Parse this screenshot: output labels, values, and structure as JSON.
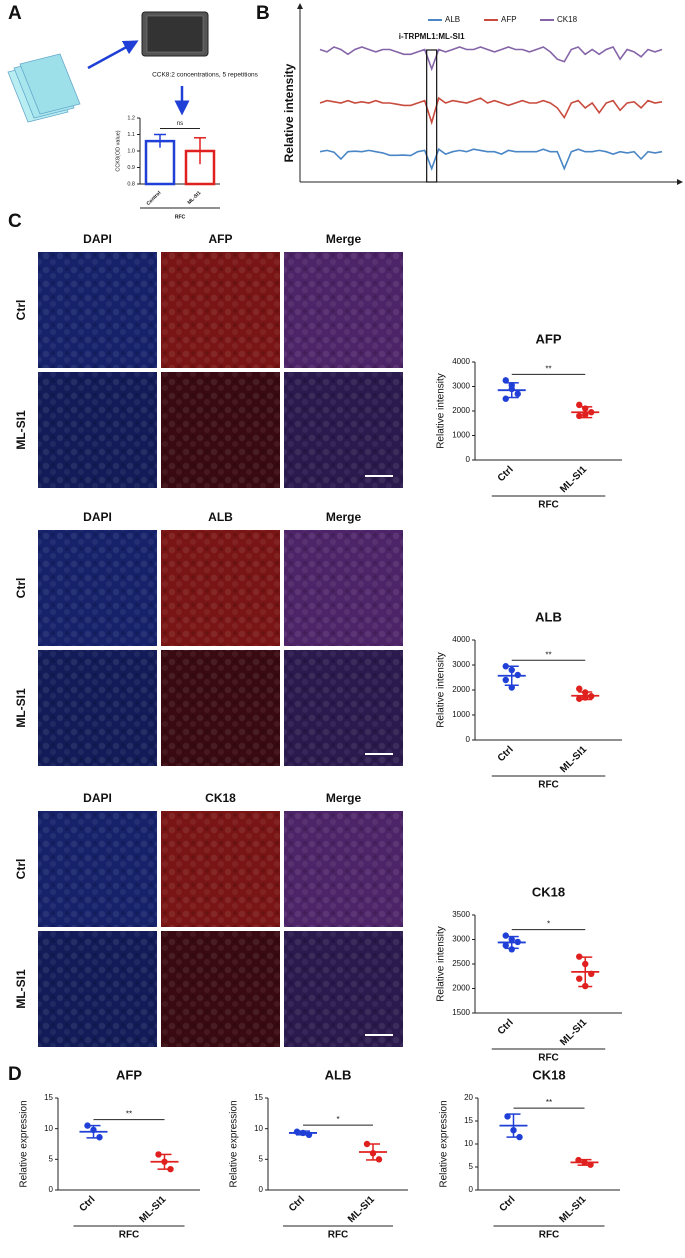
{
  "panels": [
    "A",
    "B",
    "C",
    "D"
  ],
  "panel_a": {
    "caption": "CCK8:2 concentrations, 5 repetitions"
  },
  "panel_c": {
    "blocks": [
      {
        "columns": [
          "DAPI",
          "AFP",
          "Merge"
        ],
        "rows": [
          "Ctrl",
          "ML-SI1"
        ]
      },
      {
        "columns": [
          "DAPI",
          "ALB",
          "Merge"
        ],
        "rows": [
          "Ctrl",
          "ML-SI1"
        ]
      },
      {
        "columns": [
          "DAPI",
          "CK18",
          "Merge"
        ],
        "rows": [
          "Ctrl",
          "ML-SI1"
        ]
      }
    ]
  },
  "chart_data": [
    {
      "type": "bar",
      "ylabel": "CCK8(OD value)",
      "categories": [
        "Control",
        "ML-SI1"
      ],
      "values": [
        1.06,
        1.0
      ],
      "errors": [
        0.04,
        0.08
      ],
      "colors": [
        "#1f3fd6",
        "#e0201e"
      ],
      "ylim": [
        0.8,
        1.2
      ],
      "yticks": [
        0.8,
        0.9,
        {
          "value": 1.0,
          "label": "1.0"
        },
        1.1,
        1.2
      ],
      "significance": "ns",
      "group": "RFC"
    },
    {
      "type": "line",
      "ylabel": "Relative intensity",
      "annotation": "i-TRPML1:ML-SI1",
      "ylim": [
        0,
        60
      ],
      "series": [
        {
          "name": "ALB",
          "color": "#4a86c5",
          "values": [
            10,
            10.5,
            9.8,
            7,
            10,
            10.2,
            10,
            10.5,
            10,
            9.5,
            8.5,
            8.5,
            8.6,
            8.4,
            10,
            10.5,
            3,
            11,
            9,
            10,
            10.5,
            10,
            11,
            10.5,
            10,
            10,
            9,
            10.5,
            10,
            10,
            10,
            10,
            11,
            10,
            10,
            3,
            10,
            11,
            10,
            10,
            10.5,
            10,
            9,
            10,
            9.5,
            10,
            7,
            10,
            9.5,
            10
          ]
        },
        {
          "name": "AFP",
          "color": "#c84b3e",
          "values": [
            30,
            31,
            30.5,
            30,
            31,
            30,
            30.5,
            30,
            31,
            30,
            30,
            29.5,
            29,
            29,
            30,
            31,
            22,
            32,
            30,
            31,
            30.5,
            30,
            31,
            32,
            30,
            31,
            30,
            29,
            30,
            31,
            30,
            30,
            31,
            30,
            28,
            24,
            30,
            31,
            28,
            30,
            26,
            30,
            31,
            27,
            30,
            30.5,
            28,
            31,
            30,
            30.5
          ]
        },
        {
          "name": "CK18",
          "color": "#8565a8",
          "values": [
            52,
            51,
            53,
            52,
            50,
            52,
            53,
            52,
            51,
            52,
            52,
            51,
            50,
            50,
            51,
            52,
            44,
            52,
            51,
            52,
            53,
            52,
            52,
            53,
            52,
            51,
            52,
            53,
            52,
            52,
            51,
            52,
            53,
            51,
            48,
            47,
            52,
            53,
            50,
            52,
            50,
            52,
            53,
            48,
            52,
            51,
            49,
            52,
            51,
            52
          ]
        }
      ]
    },
    {
      "type": "dot",
      "title": "AFP",
      "ylabel": "Relative intensity",
      "categories": [
        "Ctrl",
        "ML-SI1"
      ],
      "points": [
        [
          3250,
          3050,
          2700,
          2500,
          2900
        ],
        [
          2250,
          2100,
          1950,
          1800,
          1850
        ]
      ],
      "means": [
        2850,
        1950
      ],
      "errors": [
        300,
        220
      ],
      "colors": [
        "#1f3fd6",
        "#e0201e"
      ],
      "ylim": [
        0,
        4000
      ],
      "yticks": [
        0,
        1000,
        2000,
        3000,
        4000
      ],
      "significance": "**",
      "group": "RFC"
    },
    {
      "type": "dot",
      "title": "ALB",
      "ylabel": "Relative intensity",
      "categories": [
        "Ctrl",
        "ML-SI1"
      ],
      "points": [
        [
          2950,
          2800,
          2600,
          2400,
          2100
        ],
        [
          2050,
          1900,
          1750,
          1650,
          1700
        ]
      ],
      "means": [
        2570,
        1770
      ],
      "errors": [
        380,
        150
      ],
      "colors": [
        "#1f3fd6",
        "#e0201e"
      ],
      "ylim": [
        0,
        4000
      ],
      "yticks": [
        0,
        1000,
        2000,
        3000,
        4000
      ],
      "significance": "**",
      "group": "RFC"
    },
    {
      "type": "dot",
      "title": "CK18",
      "ylabel": "Relative intensity",
      "categories": [
        "Ctrl",
        "ML-SI1"
      ],
      "points": [
        [
          3080,
          3000,
          2950,
          2880,
          2800
        ],
        [
          2650,
          2500,
          2300,
          2200,
          2050
        ]
      ],
      "means": [
        2940,
        2340
      ],
      "errors": [
        120,
        300
      ],
      "colors": [
        "#1f3fd6",
        "#e0201e"
      ],
      "ylim": [
        1500,
        3500
      ],
      "yticks": [
        1500,
        2000,
        2500,
        3000,
        3500
      ],
      "significance": "*",
      "group": "RFC"
    },
    {
      "type": "dot",
      "title": "AFP",
      "ylabel": "Relative expression",
      "categories": [
        "Ctrl",
        "ML-SI1"
      ],
      "points": [
        [
          10.5,
          9.8,
          8.6
        ],
        [
          5.8,
          4.6,
          3.4
        ]
      ],
      "means": [
        9.5,
        4.6
      ],
      "errors": [
        1,
        1.2
      ],
      "colors": [
        "#1f3fd6",
        "#e0201e"
      ],
      "ylim": [
        0,
        15
      ],
      "yticks": [
        0,
        5,
        10,
        15
      ],
      "significance": "**",
      "group": "RFC"
    },
    {
      "type": "dot",
      "title": "ALB",
      "ylabel": "Relative expression",
      "categories": [
        "Ctrl",
        "ML-SI1"
      ],
      "points": [
        [
          9.5,
          9.3,
          9
        ],
        [
          7.5,
          6,
          5
        ]
      ],
      "means": [
        9.3,
        6.2
      ],
      "errors": [
        0.3,
        1.3
      ],
      "colors": [
        "#1f3fd6",
        "#e0201e"
      ],
      "ylim": [
        0,
        15
      ],
      "yticks": [
        0,
        5,
        10,
        15
      ],
      "significance": "*",
      "group": "RFC"
    },
    {
      "type": "dot",
      "title": "CK18",
      "ylabel": "Relative expression",
      "categories": [
        "Ctrl",
        "ML-SI1"
      ],
      "points": [
        [
          16,
          13,
          11.5
        ],
        [
          6.5,
          6,
          5.5
        ]
      ],
      "means": [
        14,
        6
      ],
      "errors": [
        2.5,
        0.6
      ],
      "colors": [
        "#1f3fd6",
        "#e0201e"
      ],
      "ylim": [
        0,
        20
      ],
      "yticks": [
        0,
        5,
        10,
        15,
        20
      ],
      "significance": "**",
      "group": "RFC"
    }
  ]
}
